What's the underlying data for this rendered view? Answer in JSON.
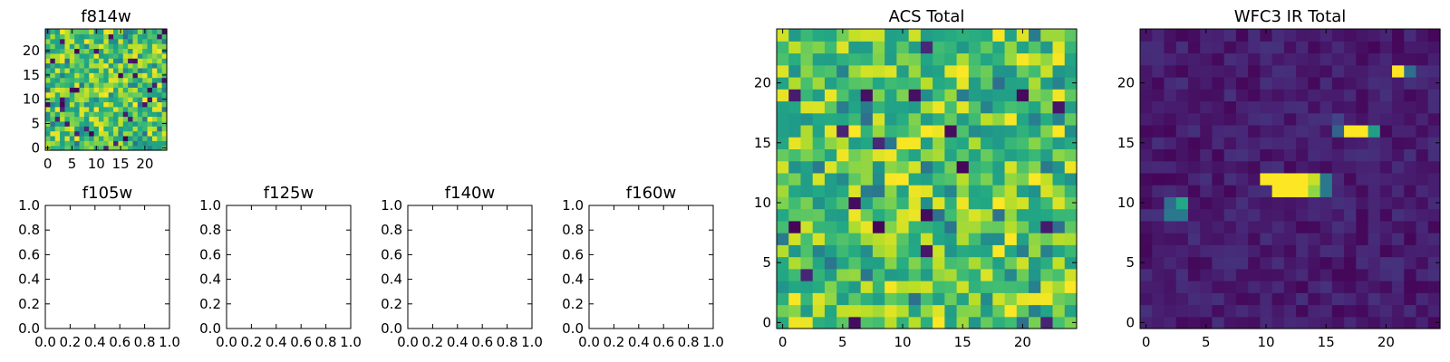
{
  "chart_data": [
    {
      "type": "heatmap",
      "title": "f814w",
      "grid_size": 25,
      "colormap": "viridis",
      "pattern": "noise",
      "xticks": [
        "0",
        "5",
        "10",
        "15",
        "20"
      ],
      "yticks": [
        "0",
        "5",
        "10",
        "15",
        "20"
      ]
    },
    {
      "type": "heatmap",
      "title": "f105w",
      "empty": true,
      "xticks": [
        "0.0",
        "0.2",
        "0.4",
        "0.6",
        "0.8",
        "1.0"
      ],
      "yticks": [
        "0.0",
        "0.2",
        "0.4",
        "0.6",
        "0.8",
        "1.0"
      ],
      "xlim": [
        0,
        1
      ],
      "ylim": [
        0,
        1
      ]
    },
    {
      "type": "heatmap",
      "title": "f125w",
      "empty": true,
      "xticks": [
        "0.0",
        "0.2",
        "0.4",
        "0.6",
        "0.8",
        "1.0"
      ],
      "yticks": [
        "0.0",
        "0.2",
        "0.4",
        "0.6",
        "0.8",
        "1.0"
      ],
      "xlim": [
        0,
        1
      ],
      "ylim": [
        0,
        1
      ]
    },
    {
      "type": "heatmap",
      "title": "f140w",
      "empty": true,
      "xticks": [
        "0.0",
        "0.2",
        "0.4",
        "0.6",
        "0.8",
        "1.0"
      ],
      "yticks": [
        "0.0",
        "0.2",
        "0.4",
        "0.6",
        "0.8",
        "1.0"
      ],
      "xlim": [
        0,
        1
      ],
      "ylim": [
        0,
        1
      ]
    },
    {
      "type": "heatmap",
      "title": "f160w",
      "empty": true,
      "xticks": [
        "0.0",
        "0.2",
        "0.4",
        "0.6",
        "0.8",
        "1.0"
      ],
      "yticks": [
        "0.0",
        "0.2",
        "0.4",
        "0.6",
        "0.8",
        "1.0"
      ],
      "xlim": [
        0,
        1
      ],
      "ylim": [
        0,
        1
      ]
    },
    {
      "type": "heatmap",
      "title": "ACS Total",
      "grid_size": 25,
      "colormap": "viridis",
      "pattern": "noise",
      "xticks": [
        "0",
        "5",
        "10",
        "15",
        "20"
      ],
      "yticks": [
        "0",
        "5",
        "10",
        "15",
        "20"
      ]
    },
    {
      "type": "heatmap",
      "title": "WFC3 IR Total",
      "grid_size": 25,
      "colormap": "viridis",
      "pattern": "sources",
      "xticks": [
        "0",
        "5",
        "10",
        "15",
        "20"
      ],
      "yticks": [
        "0",
        "5",
        "10",
        "15",
        "20"
      ],
      "bright_pixels": [
        {
          "x": 21,
          "y": 21,
          "value": 1.0
        },
        {
          "x": 22,
          "y": 21,
          "value": 0.45
        },
        {
          "x": 16,
          "y": 17,
          "value": 0.25
        },
        {
          "x": 16,
          "y": 16,
          "value": 0.4
        },
        {
          "x": 17,
          "y": 16,
          "value": 1.0
        },
        {
          "x": 18,
          "y": 16,
          "value": 1.0
        },
        {
          "x": 19,
          "y": 16,
          "value": 0.7
        },
        {
          "x": 10,
          "y": 12,
          "value": 1.0
        },
        {
          "x": 11,
          "y": 12,
          "value": 1.0
        },
        {
          "x": 12,
          "y": 12,
          "value": 1.0
        },
        {
          "x": 13,
          "y": 12,
          "value": 1.0
        },
        {
          "x": 14,
          "y": 12,
          "value": 0.95
        },
        {
          "x": 15,
          "y": 12,
          "value": 0.5
        },
        {
          "x": 11,
          "y": 11,
          "value": 1.0
        },
        {
          "x": 12,
          "y": 11,
          "value": 1.0
        },
        {
          "x": 13,
          "y": 11,
          "value": 1.0
        },
        {
          "x": 14,
          "y": 11,
          "value": 0.9
        },
        {
          "x": 15,
          "y": 11,
          "value": 0.5
        },
        {
          "x": 2,
          "y": 10,
          "value": 0.45
        },
        {
          "x": 3,
          "y": 10,
          "value": 0.75
        },
        {
          "x": 2,
          "y": 9,
          "value": 0.5
        },
        {
          "x": 3,
          "y": 9,
          "value": 0.5
        }
      ]
    }
  ]
}
